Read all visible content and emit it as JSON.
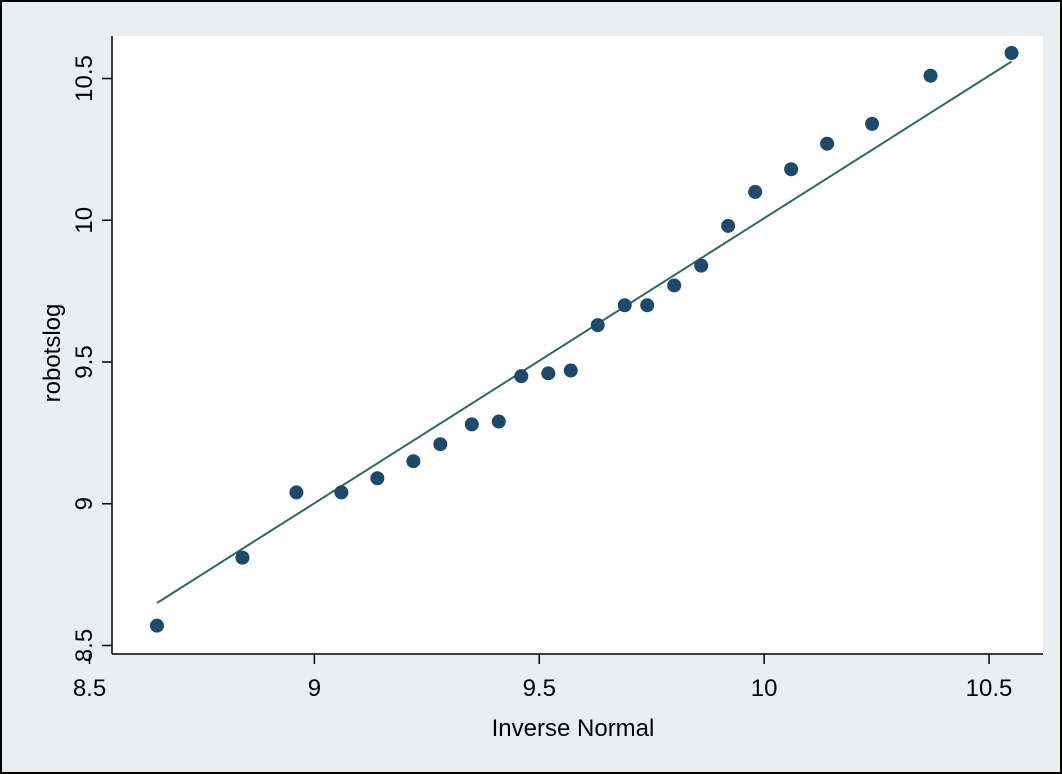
{
  "chart_data": {
    "type": "scatter",
    "title": "",
    "xlabel": "Inverse Normal",
    "ylabel": "robotslog",
    "xlim": [
      8.55,
      10.62
    ],
    "ylim": [
      8.47,
      10.65
    ],
    "x_ticks": [
      "8.5",
      "9",
      "9.5",
      "10",
      "10.5"
    ],
    "y_ticks": [
      "8.5",
      "9",
      "9.5",
      "10",
      "10.5"
    ],
    "grid": false,
    "legend": "none",
    "colors": {
      "background": "#e8eff2",
      "plot_area": "#ffffff",
      "points": "#1b4a6e",
      "fit_line": "#2e6b66",
      "axis": "#000000"
    },
    "fit_line": {
      "x": [
        8.65,
        10.55
      ],
      "y": [
        8.65,
        10.56
      ]
    },
    "points": [
      {
        "x": 8.65,
        "y": 8.57
      },
      {
        "x": 8.84,
        "y": 8.81
      },
      {
        "x": 8.96,
        "y": 9.04
      },
      {
        "x": 9.06,
        "y": 9.04
      },
      {
        "x": 9.14,
        "y": 9.09
      },
      {
        "x": 9.22,
        "y": 9.15
      },
      {
        "x": 9.28,
        "y": 9.21
      },
      {
        "x": 9.35,
        "y": 9.28
      },
      {
        "x": 9.41,
        "y": 9.29
      },
      {
        "x": 9.46,
        "y": 9.45
      },
      {
        "x": 9.52,
        "y": 9.46
      },
      {
        "x": 9.57,
        "y": 9.47
      },
      {
        "x": 9.63,
        "y": 9.63
      },
      {
        "x": 9.69,
        "y": 9.7
      },
      {
        "x": 9.74,
        "y": 9.7
      },
      {
        "x": 9.8,
        "y": 9.77
      },
      {
        "x": 9.86,
        "y": 9.84
      },
      {
        "x": 9.92,
        "y": 9.98
      },
      {
        "x": 9.98,
        "y": 10.1
      },
      {
        "x": 10.06,
        "y": 10.18
      },
      {
        "x": 10.14,
        "y": 10.27
      },
      {
        "x": 10.24,
        "y": 10.34
      },
      {
        "x": 10.37,
        "y": 10.51
      },
      {
        "x": 10.55,
        "y": 10.59
      }
    ]
  }
}
